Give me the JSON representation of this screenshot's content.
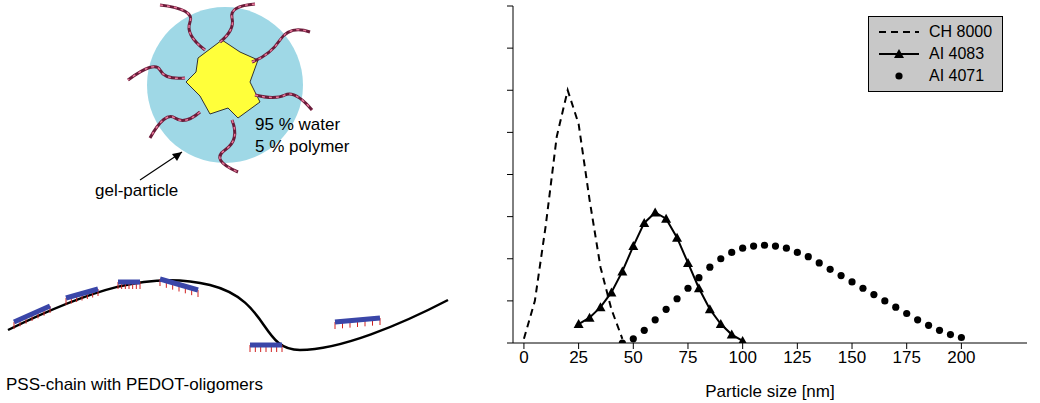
{
  "diagram": {
    "gel_label": "gel-particle",
    "composition": [
      "95 % water",
      "5 % polymer"
    ],
    "chain_label": "PSS-chain with PEDOT-oligomers"
  },
  "chart_data": {
    "type": "line",
    "x_label": "Particle size [nm]",
    "xlim": [
      -5,
      230
    ],
    "xticks": [
      0,
      25,
      50,
      75,
      100,
      125,
      150,
      175,
      200
    ],
    "ylim": [
      0,
      8
    ],
    "yticks": [
      0,
      1,
      2,
      3,
      4,
      5,
      6,
      7,
      8
    ],
    "tick_labels": "x",
    "legend": "upper right",
    "series": [
      {
        "name": "CH 8000",
        "color": "#000000",
        "line_style": "dashed",
        "marker": "none",
        "x": [
          0,
          5,
          10,
          15,
          20,
          25,
          30,
          35,
          40,
          45
        ],
        "values": [
          0.1,
          1.0,
          2.8,
          4.9,
          6.0,
          5.2,
          3.4,
          1.8,
          0.8,
          0.1
        ]
      },
      {
        "name": "AI 4083",
        "color": "#000000",
        "line_style": "solid",
        "marker": "triangle",
        "x": [
          25,
          30,
          35,
          40,
          45,
          50,
          55,
          60,
          65,
          70,
          75,
          80,
          85,
          90,
          95,
          100
        ],
        "values": [
          0.45,
          0.6,
          0.85,
          1.2,
          1.7,
          2.3,
          2.85,
          3.1,
          2.95,
          2.5,
          1.9,
          1.3,
          0.8,
          0.45,
          0.2,
          0.05
        ]
      },
      {
        "name": "AI 4071",
        "color": "#000000",
        "line_style": "none",
        "marker": "circle",
        "x": [
          45,
          50,
          55,
          60,
          65,
          70,
          75,
          80,
          85,
          90,
          95,
          100,
          105,
          110,
          115,
          120,
          125,
          130,
          135,
          140,
          145,
          150,
          155,
          160,
          165,
          170,
          175,
          180,
          185,
          190,
          195,
          200
        ],
        "values": [
          0,
          0.1,
          0.3,
          0.55,
          0.8,
          1.05,
          1.3,
          1.55,
          1.8,
          2.0,
          2.15,
          2.25,
          2.3,
          2.32,
          2.3,
          2.25,
          2.15,
          2.05,
          1.9,
          1.75,
          1.6,
          1.45,
          1.3,
          1.15,
          1.0,
          0.85,
          0.7,
          0.55,
          0.42,
          0.3,
          0.2,
          0.13
        ]
      }
    ]
  }
}
